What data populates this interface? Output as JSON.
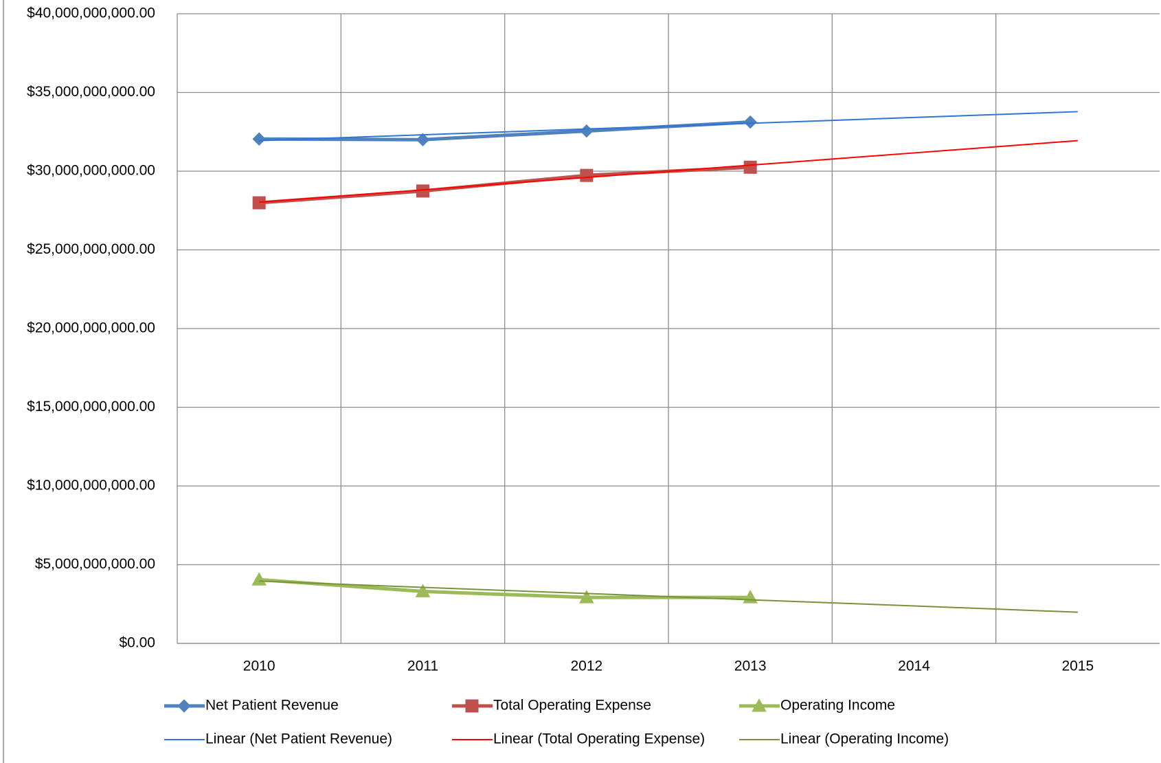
{
  "chart_data": {
    "type": "line",
    "categories": [
      "2010",
      "2011",
      "2012",
      "2013",
      "2014",
      "2015"
    ],
    "ylim": [
      0,
      40000000000
    ],
    "yticks": [
      {
        "value": 0,
        "label": "$0.00"
      },
      {
        "value": 5000000000,
        "label": "$5,000,000,000.00"
      },
      {
        "value": 10000000000,
        "label": "$10,000,000,000.00"
      },
      {
        "value": 15000000000,
        "label": "$15,000,000,000.00"
      },
      {
        "value": 20000000000,
        "label": "$20,000,000,000.00"
      },
      {
        "value": 25000000000,
        "label": "$25,000,000,000.00"
      },
      {
        "value": 30000000000,
        "label": "$30,000,000,000.00"
      },
      {
        "value": 35000000000,
        "label": "$35,000,000,000.00"
      },
      {
        "value": 40000000000,
        "label": "$40,000,000,000.00"
      }
    ],
    "grid": true,
    "legend": "bottom",
    "series": [
      {
        "name": "Net Patient Revenue",
        "color": "#4f81bd",
        "marker": "diamond",
        "values": [
          32040000000,
          32000000000,
          32550000000,
          33120000000,
          null,
          null
        ]
      },
      {
        "name": "Total Operating Expense",
        "color": "#c0504d",
        "marker": "square",
        "values": [
          27990000000,
          28740000000,
          29730000000,
          30250000000,
          null,
          null
        ]
      },
      {
        "name": "Operating Income",
        "color": "#9bbb59",
        "marker": "triangle",
        "values": [
          4050000000,
          3300000000,
          2920000000,
          2920000000,
          null,
          null
        ]
      },
      {
        "name": "Linear (Net Patient Revenue)",
        "color": "#2e75d6",
        "values": [
          31940000000,
          32310000000,
          32680000000,
          33040000000,
          33410000000,
          33780000000
        ]
      },
      {
        "name": "Linear (Total Operating Expense)",
        "color": "#ff0000",
        "values": [
          28030000000,
          28810000000,
          29600000000,
          30380000000,
          31160000000,
          31940000000
        ]
      },
      {
        "name": "Linear (Operating Income)",
        "color": "#77933c",
        "values": [
          3960000000,
          3560000000,
          3170000000,
          2770000000,
          2380000000,
          1980000000
        ]
      }
    ]
  }
}
